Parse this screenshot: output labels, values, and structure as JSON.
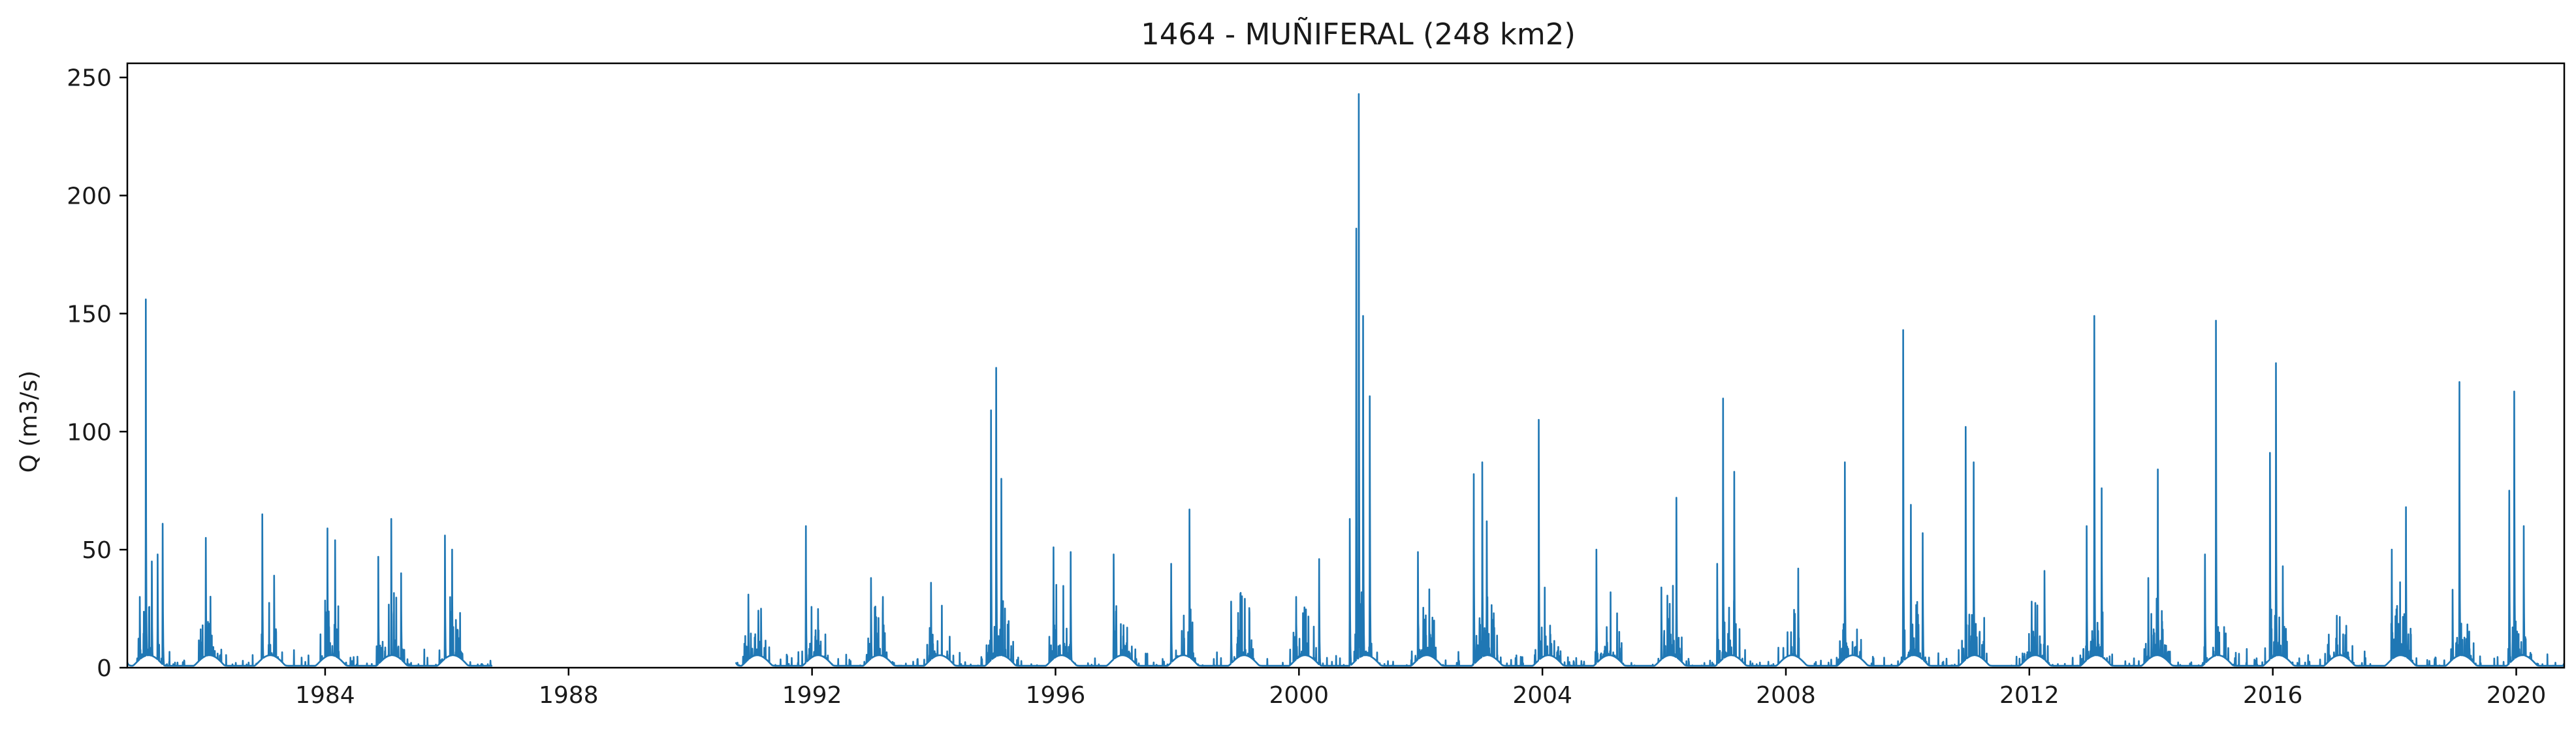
{
  "chart_data": {
    "type": "line",
    "title": "1464 - MUÑIFERAL (248 km2)",
    "xlabel": "",
    "ylabel": "Q (m3/s)",
    "xlim": [
      "1980-10-01",
      "2020-10-15"
    ],
    "ylim": [
      0,
      256
    ],
    "x_ticks": [
      "1984",
      "1988",
      "1992",
      "1996",
      "2000",
      "2004",
      "2008",
      "2012",
      "2016",
      "2020"
    ],
    "y_ticks": [
      "0",
      "50",
      "100",
      "150",
      "200",
      "250"
    ],
    "grid": false,
    "legend": "none",
    "series": [
      {
        "color": "#1f77b4",
        "data_note": "daily discharge; peak values estimated from the plot",
        "segments": [
          {
            "start": "1980-10-01",
            "end": "1986-09-30",
            "peaks": [
              [
                "1980-12-15",
                30
              ],
              [
                "1981-01-20",
                156
              ],
              [
                "1981-02-25",
                45
              ],
              [
                "1981-04-01",
                48
              ],
              [
                "1981-05-01",
                61
              ],
              [
                "1982-01-15",
                55
              ],
              [
                "1982-12-20",
                65
              ],
              [
                "1983-03-01",
                39
              ],
              [
                "1984-01-15",
                59
              ],
              [
                "1984-03-01",
                54
              ],
              [
                "1984-11-15",
                47
              ],
              [
                "1985-02-01",
                63
              ],
              [
                "1985-04-01",
                40
              ],
              [
                "1985-12-20",
                56
              ],
              [
                "1986-02-01",
                50
              ]
            ]
          },
          {
            "start": "1990-10-01",
            "end": "2020-10-15",
            "peaks": [
              [
                "1990-12-15",
                31
              ],
              [
                "1991-03-01",
                25
              ],
              [
                "1991-11-25",
                60
              ],
              [
                "1992-12-20",
                38
              ],
              [
                "1993-03-01",
                30
              ],
              [
                "1993-12-15",
                36
              ],
              [
                "1994-12-10",
                109
              ],
              [
                "1995-01-10",
                127
              ],
              [
                "1995-02-10",
                80
              ],
              [
                "1995-12-20",
                51
              ],
              [
                "1996-04-01",
                49
              ],
              [
                "1996-12-15",
                48
              ],
              [
                "1997-11-25",
                44
              ],
              [
                "1998-03-15",
                67
              ],
              [
                "1998-11-20",
                28
              ],
              [
                "1999-12-15",
                30
              ],
              [
                "2000-05-01",
                46
              ],
              [
                "2000-11-01",
                63
              ],
              [
                "2000-12-10",
                186
              ],
              [
                "2000-12-25",
                243
              ],
              [
                "2001-01-20",
                149
              ],
              [
                "2001-03-01",
                115
              ],
              [
                "2001-12-15",
                49
              ],
              [
                "2002-11-15",
                82
              ],
              [
                "2003-01-05",
                87
              ],
              [
                "2003-02-01",
                62
              ],
              [
                "2003-12-10",
                105
              ],
              [
                "2004-11-20",
                50
              ],
              [
                "2005-12-15",
                34
              ],
              [
                "2006-03-15",
                72
              ],
              [
                "2006-11-15",
                44
              ],
              [
                "2006-12-20",
                114
              ],
              [
                "2007-02-25",
                83
              ],
              [
                "2008-03-15",
                42
              ],
              [
                "2008-12-20",
                87
              ],
              [
                "2009-12-05",
                143
              ],
              [
                "2010-01-20",
                69
              ],
              [
                "2010-04-01",
                57
              ],
              [
                "2010-12-15",
                102
              ],
              [
                "2011-02-01",
                87
              ],
              [
                "2012-01-15",
                28
              ],
              [
                "2012-04-01",
                41
              ],
              [
                "2012-12-10",
                60
              ],
              [
                "2013-01-25",
                149
              ],
              [
                "2013-03-10",
                76
              ],
              [
                "2013-12-15",
                38
              ],
              [
                "2014-02-10",
                84
              ],
              [
                "2014-11-20",
                48
              ],
              [
                "2015-01-25",
                147
              ],
              [
                "2015-12-15",
                91
              ],
              [
                "2016-01-20",
                129
              ],
              [
                "2016-03-01",
                43
              ],
              [
                "2017-12-15",
                50
              ],
              [
                "2018-03-10",
                68
              ],
              [
                "2018-12-15",
                33
              ],
              [
                "2019-01-25",
                121
              ],
              [
                "2019-11-20",
                75
              ],
              [
                "2019-12-20",
                117
              ],
              [
                "2020-02-15",
                60
              ]
            ]
          }
        ]
      }
    ]
  }
}
